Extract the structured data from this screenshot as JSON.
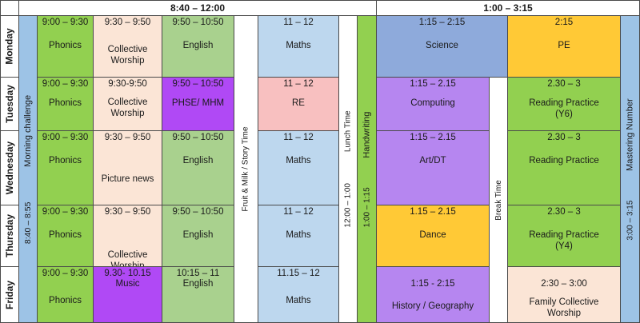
{
  "header": {
    "morning": "8:40 – 12:00",
    "afternoon": "1:00 – 3:15"
  },
  "days": [
    "Monday",
    "Tuesday",
    "Wednesday",
    "Thursday",
    "Friday"
  ],
  "bars": {
    "morning_challenge": "Morning challenge",
    "morning_challenge_time": "8:40 – 8:55",
    "fruit_milk": "Fruit & Milk / Story Time",
    "lunch_time": "Lunch Time",
    "lunch_time_range": "12:00 – 1:00",
    "handwriting": "Handwriting",
    "handwriting_time": "1:00 – 1:15",
    "break_time": "Break Time",
    "mastering_number": "Mastering Number",
    "mastering_number_time": "3:00 – 3:15"
  },
  "colors": {
    "green": "#92d050",
    "light_green": "#a9d18e",
    "peach": "#fbe5d6",
    "purple": "#b686f0",
    "magenta": "#b049f5",
    "light_blue": "#bdd7ee",
    "blue": "#8eaadb",
    "orange": "#ffc936",
    "pink": "#f8c0c0",
    "bar_blue": "#9dc3e6"
  },
  "lessons": {
    "mon": {
      "p1": {
        "time": "9:00 – 9:30",
        "subject": "Phonics"
      },
      "p2": {
        "time": "9:30 – 9:50",
        "subject": "Collective Worship"
      },
      "p3": {
        "time": "9:50 – 10:50",
        "subject": "English"
      },
      "p4": {
        "time": "11 – 12",
        "subject": "Maths"
      },
      "p5": {
        "time": "1:15 – 2:15",
        "subject": "Science"
      },
      "p6": {
        "time": "2:15",
        "subject": "PE"
      }
    },
    "tue": {
      "p1": {
        "time": "9:00 – 9:30",
        "subject": "Phonics"
      },
      "p2": {
        "time": "9:30-9:50",
        "subject": "Collective Worship"
      },
      "p3": {
        "time": "9:50 – 10:50",
        "subject": "PHSE/ MHM"
      },
      "p4": {
        "time": "11 – 12",
        "subject": "RE"
      },
      "p5": {
        "time": "1:15 – 2.15",
        "subject": "Computing"
      },
      "p6": {
        "time": "2.30 – 3",
        "subject1": "Reading Practice",
        "subject2": "(Y6)"
      }
    },
    "wed": {
      "p1": {
        "time": "9:00 – 9:30",
        "subject": "Phonics"
      },
      "p2": {
        "time": "9:30 – 9:50",
        "subject": "Picture news"
      },
      "p3": {
        "time": "9:50 – 10:50",
        "subject": "English"
      },
      "p4": {
        "time": "11 – 12",
        "subject": "Maths"
      },
      "p5": {
        "time": "1:15 – 2.15",
        "subject": "Art/DT"
      },
      "p6": {
        "time": "2.30 – 3",
        "subject": "Reading Practice"
      }
    },
    "thu": {
      "p1": {
        "time": "9:00 – 9:30",
        "subject": "Phonics"
      },
      "p2": {
        "time": "9:30 – 9:50",
        "subject": "Collective Worship"
      },
      "p3": {
        "time": "9:50 – 10:50",
        "subject": "English"
      },
      "p4": {
        "time": "11 – 12",
        "subject": "Maths"
      },
      "p5": {
        "time": "1.15 – 2.15",
        "subject": "Dance"
      },
      "p6": {
        "time": "2.30 – 3",
        "subject1": "Reading Practice",
        "subject2": "(Y4)"
      }
    },
    "fri": {
      "p1": {
        "time": "9:00 – 9:30",
        "subject": "Phonics"
      },
      "p2": {
        "time": "9.30- 10.15",
        "subject": "Music"
      },
      "p3": {
        "time": "10:15 – 11",
        "subject": "English"
      },
      "p4": {
        "time": "11.15 – 12",
        "subject": "Maths"
      },
      "p5": {
        "time": "1:15 - 2:15",
        "subject": "History / Geography"
      },
      "p6": {
        "time": "2:30 – 3:00",
        "subject1": "Family Collective",
        "subject2": "Worship"
      }
    }
  }
}
